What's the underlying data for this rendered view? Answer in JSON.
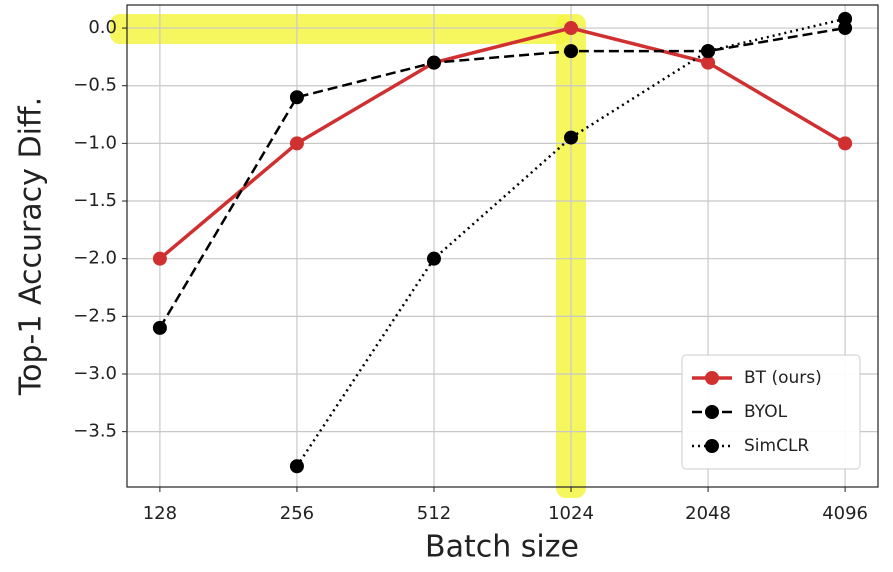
{
  "chart_data": {
    "type": "line",
    "x_label": "Batch size",
    "y_label": "Top-1 Accuracy Diff.",
    "categories": [
      "128",
      "256",
      "512",
      "1024",
      "2048",
      "4096"
    ],
    "series": [
      {
        "name": "BT (ours)",
        "color": "#d03030",
        "linestyle": "solid",
        "values": [
          -2.0,
          -1.0,
          -0.3,
          0.0,
          -0.3,
          -1.0
        ]
      },
      {
        "name": "BYOL",
        "color": "#000000",
        "linestyle": "dashed",
        "values": [
          -2.6,
          -0.6,
          -0.3,
          -0.2,
          -0.2,
          0.0
        ]
      },
      {
        "name": "SimCLR",
        "color": "#000000",
        "linestyle": "dotted",
        "values": [
          null,
          -3.8,
          -2.0,
          -0.95,
          -0.2,
          0.08
        ]
      }
    ],
    "ylim": [
      -3.98,
      0.2
    ],
    "yticks": [
      {
        "value": 0,
        "label": "0.0"
      },
      {
        "value": -0.5,
        "label": "−0.5"
      },
      {
        "value": -1,
        "label": "−1.0"
      },
      {
        "value": -1.5,
        "label": "−1.5"
      },
      {
        "value": -2,
        "label": "−2.0"
      },
      {
        "value": -2.5,
        "label": "−2.5"
      },
      {
        "value": -3,
        "label": "−3.0"
      },
      {
        "value": -3.5,
        "label": "−3.5"
      }
    ],
    "grid": true,
    "legend": "lower right"
  }
}
